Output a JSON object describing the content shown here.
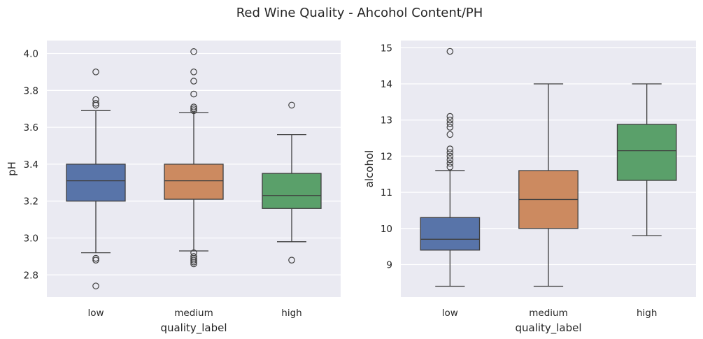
{
  "figure": {
    "title": "Red Wine Quality - Ahcohol Content/PH"
  },
  "palette": {
    "background": "#eaeaf2",
    "grid": "#ffffff",
    "low": "#5874a9",
    "medium": "#cc8a60",
    "high": "#5aa06a",
    "line": "#3f3f3f"
  },
  "chart_data": [
    {
      "type": "box",
      "xlabel": "quality_label",
      "ylabel": "pH",
      "ylim": [
        2.68,
        4.07
      ],
      "yticks": [
        "2.8",
        "3.0",
        "3.2",
        "3.4",
        "3.6",
        "3.8",
        "4.0"
      ],
      "categories": [
        "low",
        "medium",
        "high"
      ],
      "grid": true,
      "boxes": [
        {
          "category": "low",
          "whisker_low": 2.92,
          "q1": 3.2,
          "median": 3.31,
          "q3": 3.4,
          "whisker_high": 3.69,
          "outliers": [
            2.74,
            2.88,
            2.89,
            3.72,
            3.73,
            3.75,
            3.9
          ]
        },
        {
          "category": "medium",
          "whisker_low": 2.93,
          "q1": 3.21,
          "median": 3.31,
          "q3": 3.4,
          "whisker_high": 3.68,
          "outliers": [
            2.86,
            2.87,
            2.88,
            2.89,
            2.9,
            2.92,
            3.69,
            3.7,
            3.71,
            3.78,
            3.85,
            3.9,
            4.01
          ]
        },
        {
          "category": "high",
          "whisker_low": 2.98,
          "q1": 3.16,
          "median": 3.23,
          "q3": 3.35,
          "whisker_high": 3.56,
          "outliers": [
            2.88,
            3.72
          ]
        }
      ]
    },
    {
      "type": "box",
      "xlabel": "quality_label",
      "ylabel": "alcohol",
      "ylim": [
        8.1,
        15.2
      ],
      "yticks": [
        "9",
        "10",
        "11",
        "12",
        "13",
        "14",
        "15"
      ],
      "categories": [
        "low",
        "medium",
        "high"
      ],
      "grid": true,
      "boxes": [
        {
          "category": "low",
          "whisker_low": 8.4,
          "q1": 9.4,
          "median": 9.7,
          "q3": 10.3,
          "whisker_high": 11.6,
          "outliers": [
            11.7,
            11.8,
            11.9,
            12.0,
            12.1,
            12.2,
            12.6,
            12.8,
            12.9,
            13.0,
            13.1,
            14.9
          ]
        },
        {
          "category": "medium",
          "whisker_low": 8.4,
          "q1": 10.0,
          "median": 10.8,
          "q3": 11.6,
          "whisker_high": 14.0,
          "outliers": []
        },
        {
          "category": "high",
          "whisker_low": 9.8,
          "q1": 11.33,
          "median": 12.15,
          "q3": 12.88,
          "whisker_high": 14.0,
          "outliers": []
        }
      ]
    }
  ]
}
